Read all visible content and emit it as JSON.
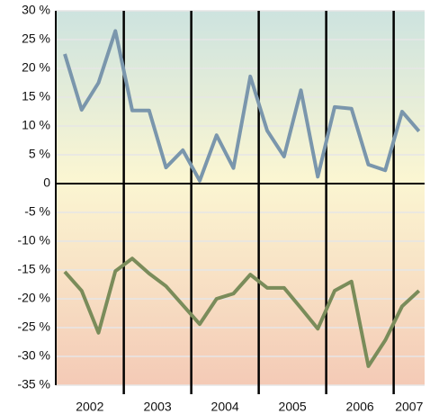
{
  "chart_data": {
    "type": "line",
    "categories": [
      "2002",
      null,
      null,
      null,
      "2003",
      null,
      null,
      null,
      "2004",
      null,
      null,
      null,
      "2005",
      null,
      null,
      null,
      "2006",
      null,
      null,
      null,
      "2007",
      null
    ],
    "series": [
      {
        "color": "#7a96ac",
        "values": [
          22.5,
          12.8,
          17.5,
          26.5,
          12.7,
          12.7,
          2.8,
          5.8,
          0.5,
          8.4,
          2.7,
          18.6,
          9.2,
          4.7,
          16.2,
          1.2,
          13.3,
          13,
          3.3,
          2.3,
          12.5,
          9.1
        ]
      },
      {
        "color": "#7a8c5a",
        "values": [
          -15.3,
          -18.6,
          -25.9,
          -15.2,
          -13,
          -15.6,
          -17.8,
          -21.1,
          -24.4,
          -20,
          -19.1,
          -15.8,
          -18.1,
          -18.1,
          -21.6,
          -25.2,
          -18.6,
          -17,
          -31.7,
          -27.2,
          -21.3,
          -18.6
        ]
      }
    ],
    "ylim": [
      -35,
      30
    ],
    "yticks": [
      {
        "value": -35,
        "label": "-35 %"
      },
      {
        "value": -30,
        "label": "-30 %"
      },
      {
        "value": -25,
        "label": "-25 %"
      },
      {
        "value": -20,
        "label": "-20 %"
      },
      {
        "value": -15,
        "label": "-15 %"
      },
      {
        "value": -10,
        "label": "-10 %"
      },
      {
        "value": -5,
        "label": "-5 %"
      },
      0,
      {
        "value": 5,
        "label": "5 %"
      },
      {
        "value": 10,
        "label": "10 %"
      },
      {
        "value": 15,
        "label": "15 %"
      },
      {
        "value": 20,
        "label": "20 %"
      },
      {
        "value": 25,
        "label": "25 %"
      },
      {
        "value": 30,
        "label": "30 %"
      }
    ],
    "grid": true
  }
}
